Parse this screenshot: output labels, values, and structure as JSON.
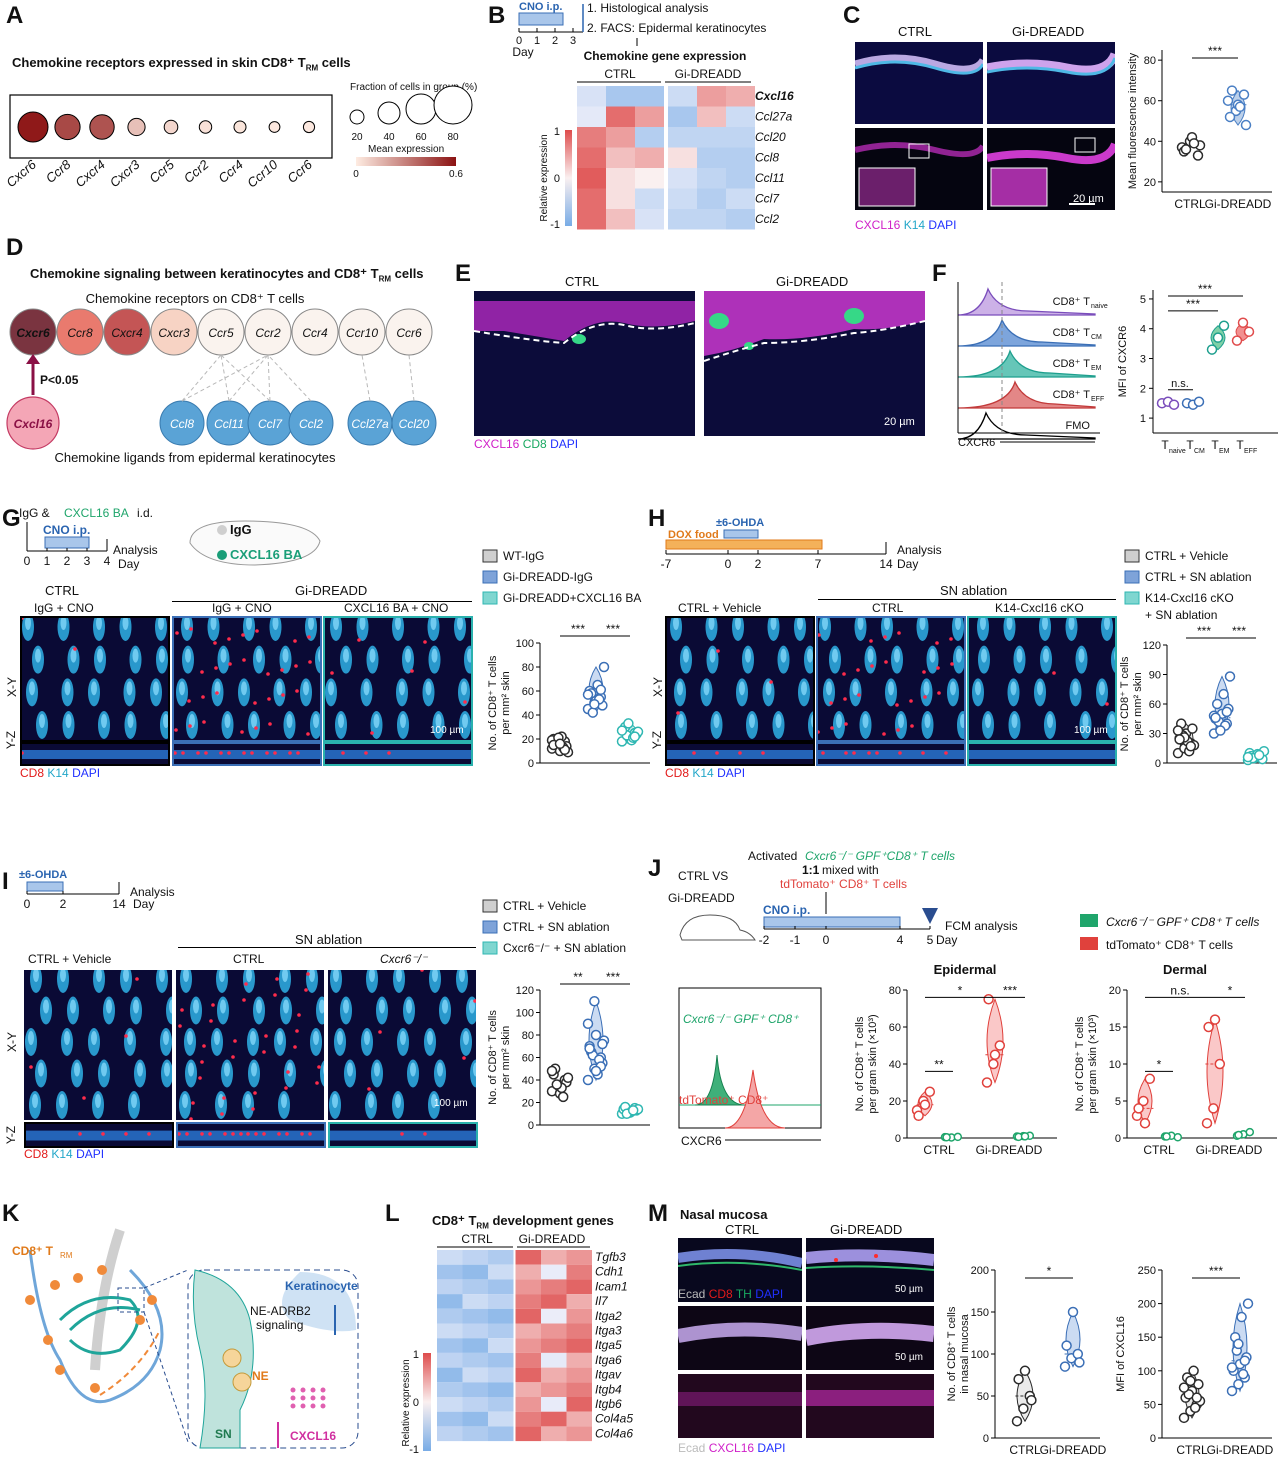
{
  "colors": {
    "ctrl": "#2b2b2b",
    "gi": "#4a7fc4",
    "ba": "#2fb7b2",
    "green": "#1fa56b",
    "red": "#e0413c",
    "magenta": "#e020c8",
    "k14": "#38b6d6",
    "dapi": "#2a3cff"
  },
  "panelA": {
    "label": "A",
    "title": "Chemokine receptors expressed in skin CD8⁺ T",
    "title_sub": "RM",
    "title_end": " cells",
    "genes": [
      "Cxcr6",
      "Ccr8",
      "Cxcr4",
      "Cxcr3",
      "Ccr5",
      "Ccr2",
      "Ccr4",
      "Ccr10",
      "Ccr6"
    ],
    "fraction": [
      60,
      48,
      46,
      28,
      19,
      16,
      15,
      12,
      13
    ],
    "expression": [
      0.58,
      0.45,
      0.42,
      0.12,
      0.06,
      0.03,
      0.02,
      0.01,
      0.01
    ],
    "size_title": "Fraction of cells in group (%)",
    "size_ticks": [
      "20",
      "40",
      "60",
      "80"
    ],
    "color_title": "Mean expression",
    "color_ticks": [
      "0",
      "0.6"
    ]
  },
  "panelB": {
    "label": "B",
    "cno": "CNO i.p.",
    "step1": "1. Histological analysis",
    "step2": "2. FACS: Epidermal keratinocytes",
    "days": [
      "0",
      "1",
      "2",
      "3"
    ],
    "day_label": "Day",
    "heat_title": "Chemokine gene expression",
    "groups": [
      "CTRL",
      "Gi-DREADD"
    ],
    "genes": [
      "Cxcl16",
      "Ccl27a",
      "Ccl20",
      "Ccl8",
      "Ccl11",
      "Ccl7",
      "Ccl2"
    ],
    "scale_label": "Relative expression",
    "scale_ticks": [
      "1",
      "0",
      "-1"
    ]
  },
  "panelC": {
    "label": "C",
    "groups": [
      "CTRL",
      "Gi-DREADD"
    ],
    "stain": [
      "CXCL16",
      "K14",
      "DAPI"
    ],
    "scale": "20 µm",
    "ylabel": "Mean fluorescence intensity",
    "yticks": [
      "20",
      "40",
      "60",
      "80"
    ],
    "sig": "***",
    "ctrl": [
      37,
      40,
      33,
      35,
      42,
      38,
      36,
      39
    ],
    "gi": [
      60,
      55,
      63,
      52,
      58,
      48,
      65,
      57
    ]
  },
  "panelD": {
    "label": "D",
    "title": "Chemokine signaling between keratinocytes and CD8⁺ T",
    "title_sub": "RM",
    "title_end": " cells",
    "receptor_caption": "Chemokine receptors on CD8⁺ T cells",
    "receptors": [
      "Cxcr6",
      "Ccr8",
      "Cxcr4",
      "Cxcr3",
      "Ccr5",
      "Ccr2",
      "Ccr4",
      "Ccr10",
      "Ccr6"
    ],
    "ligand": "Cxcl16",
    "pval": "P<0.05",
    "ligands": [
      "Ccl8",
      "Ccl11",
      "Ccl7",
      "Ccl2",
      "Ccl27a",
      "Ccl20"
    ],
    "ligand_caption": "Chemokine ligands from epidermal keratinocytes"
  },
  "panelE": {
    "label": "E",
    "groups": [
      "CTRL",
      "Gi-DREADD"
    ],
    "stain": [
      "CXCL16",
      "CD8",
      "DAPI"
    ],
    "scale": "20 µm"
  },
  "panelF": {
    "label": "F",
    "hist_labels": [
      "CD8⁺ T",
      "CD8⁺ T",
      "CD8⁺ T",
      "CD8⁺ T",
      "FMO"
    ],
    "hist_subs": [
      "naive",
      "CM",
      "EM",
      "EFF",
      ""
    ],
    "xlabel": "CXCR6",
    "ylabel": "MFI of CXCR6",
    "yticks": [
      "1",
      "2",
      "3",
      "4",
      "5"
    ],
    "cats": [
      "T",
      "T",
      "T",
      "T"
    ],
    "cat_subs": [
      "naive",
      "CM",
      "EM",
      "EFF"
    ],
    "values": [
      [
        1.5,
        1.55,
        1.45
      ],
      [
        1.5,
        1.45,
        1.55
      ],
      [
        3.3,
        3.7,
        4.1
      ],
      [
        3.6,
        4.2,
        3.9
      ]
    ],
    "sig": [
      "n.s.",
      "***",
      "***"
    ]
  },
  "panelG": {
    "label": "G",
    "inj": "IgG & ",
    "inj2": "CXCL16 BA",
    "inj3": " i.d.",
    "cno": "CNO i.p.",
    "analysis": "Analysis",
    "days": [
      "0",
      "1",
      "2",
      "3",
      "4"
    ],
    "day_label": "Day",
    "mouse_igg": "IgG",
    "mouse_ba": "CXCL16 BA",
    "group_header": "Gi-DREADD",
    "cols": [
      {
        "title": "CTRL",
        "sub": "IgG + CNO"
      },
      {
        "title": "",
        "sub": "IgG + CNO"
      },
      {
        "title": "",
        "sub": "CXCL16 BA + CNO"
      }
    ],
    "axis_xy": "X-Y",
    "axis_yz": "Y-Z",
    "scale": "100 µm",
    "stain": [
      "CD8",
      "K14",
      "DAPI"
    ],
    "legend": [
      "WT-IgG",
      "Gi-DREADD-IgG",
      "Gi-DREADD+CXCL16 BA"
    ],
    "ylabel": "No. of CD8⁺ T cells",
    "ylabel2": "per mm² skin",
    "yticks": [
      "0",
      "20",
      "40",
      "60",
      "80",
      "100"
    ],
    "sig": [
      "***",
      "***"
    ],
    "values": [
      [
        12,
        15,
        18,
        20,
        10,
        14,
        16,
        22,
        9,
        17,
        13,
        19,
        21,
        11,
        15,
        16
      ],
      [
        45,
        50,
        55,
        60,
        52,
        48,
        58,
        65,
        80,
        42,
        53,
        57,
        49,
        61
      ],
      [
        18,
        22,
        25,
        28,
        20,
        24,
        30,
        19,
        26,
        23,
        21,
        27,
        33,
        22
      ]
    ]
  },
  "panelH": {
    "label": "H",
    "dox": "DOX food",
    "ohda": "±6-OHDA",
    "analysis": "Analysis",
    "days": [
      "-7",
      "0",
      "2",
      "7",
      "14"
    ],
    "day_label": "Day",
    "group_header": "SN ablation",
    "cols": [
      {
        "sub": "CTRL + Vehicle"
      },
      {
        "sub": "CTRL"
      },
      {
        "sub": "K14-Cxcl16 cKO"
      }
    ],
    "axis_xy": "X-Y",
    "axis_yz": "Y-Z",
    "scale": "100 µm",
    "stain": [
      "CD8",
      "K14",
      "DAPI"
    ],
    "legend": [
      "CTRL + Vehicle",
      "CTRL + SN ablation",
      "K14-Cxcl16 cKO",
      "+ SN ablation"
    ],
    "ylabel": "No. of CD8⁺ T cells",
    "ylabel2": "per mm² skin",
    "yticks": [
      "0",
      "30",
      "60",
      "90",
      "120"
    ],
    "sig": [
      "***",
      "***"
    ],
    "values": [
      [
        10,
        15,
        20,
        25,
        30,
        35,
        40,
        22,
        18,
        28,
        12,
        33,
        26,
        17,
        24
      ],
      [
        30,
        35,
        40,
        45,
        50,
        55,
        60,
        70,
        88,
        42,
        38,
        48,
        33,
        52,
        46
      ],
      [
        3,
        5,
        8,
        10,
        6,
        4,
        7,
        9,
        12,
        5,
        8,
        6
      ]
    ]
  },
  "panelI": {
    "label": "I",
    "ohda": "±6-OHDA",
    "analysis": "Analysis",
    "days": [
      "0",
      "2",
      "14"
    ],
    "day_label": "Day",
    "group_header": "SN ablation",
    "cols": [
      {
        "sub": "CTRL + Vehicle"
      },
      {
        "sub": "CTRL"
      },
      {
        "sub": "Cxcr6⁻/⁻"
      }
    ],
    "axis_xy": "X-Y",
    "axis_yz": "Y-Z",
    "scale": "100 µm",
    "stain": [
      "CD8",
      "K14",
      "DAPI"
    ],
    "legend": [
      "CTRL + Vehicle",
      "CTRL + SN ablation",
      "Cxcr6⁻/⁻ + SN ablation"
    ],
    "ylabel": "No. of CD8⁺ T cells",
    "ylabel2": "per mm² skin",
    "yticks": [
      "0",
      "20",
      "40",
      "60",
      "80",
      "100",
      "120"
    ],
    "sig": [
      "**",
      "***"
    ],
    "values": [
      [
        30,
        35,
        40,
        45,
        28,
        38,
        50,
        33,
        42,
        36,
        25,
        48
      ],
      [
        40,
        50,
        60,
        70,
        80,
        55,
        65,
        45,
        75,
        62,
        58,
        90,
        110,
        52,
        68,
        48,
        72
      ],
      [
        10,
        12,
        15,
        14,
        11,
        13,
        16,
        12,
        14,
        10,
        13
      ]
    ]
  },
  "panelJ": {
    "label": "J",
    "cond": "CTRL VS",
    "cond2": "Gi-DREADD",
    "act1": "Activated ",
    "act2": "Cxcr6⁻/⁻ GPF⁺CD8⁺ T cells",
    "mix1": "1:1",
    "mix2": " mixed with",
    "mix3": "tdTomato⁺ CD8⁺ T cells",
    "cno": "CNO i.p.",
    "fcm": "FCM analysis",
    "days": [
      "-2",
      "-1",
      "0",
      "4",
      "5"
    ],
    "day_label": "Day",
    "hist_g": "Cxcr6⁻/⁻ GPF⁺ CD8⁺",
    "hist_r": "tdTomato⁺ CD8⁺",
    "hist_x": "CXCR6",
    "legend": [
      "Cxcr6⁻/⁻ GPF⁺ CD8⁺ T cells",
      "tdTomato⁺ CD8⁺ T cells"
    ],
    "ep_title": "Epidermal",
    "de_title": "Dermal",
    "ylabel": "No. of CD8⁺ T cells",
    "ylabel2": "per gram skin (×10³)",
    "ep_yticks": [
      "0",
      "20",
      "40",
      "60",
      "80"
    ],
    "de_yticks": [
      "0",
      "5",
      "10",
      "15",
      "20"
    ],
    "xcats": [
      "CTRL",
      "Gi-DREADD"
    ],
    "ep_sig": [
      "**",
      "*",
      "***"
    ],
    "de_sig": [
      "*",
      "n.s.",
      "*"
    ],
    "ep": {
      "ctrl_td": [
        15,
        20,
        25,
        12,
        18
      ],
      "ctrl_g": [
        0.5,
        0.3,
        0.6,
        0.4
      ],
      "gi_td": [
        30,
        40,
        50,
        75,
        45
      ],
      "gi_g": [
        0.8,
        1,
        1.2,
        0.6,
        0.9
      ]
    },
    "de": {
      "ctrl_td": [
        3,
        5,
        8,
        4,
        2
      ],
      "ctrl_g": [
        0.2,
        0.3,
        0.1,
        0.2
      ],
      "gi_td": [
        2,
        4,
        10,
        15,
        16
      ],
      "gi_g": [
        0.3,
        0.5,
        0.8,
        0.4
      ]
    }
  },
  "panelK": {
    "label": "K",
    "trm": "CD8⁺ T",
    "trm_sub": "RM",
    "kc": "Keratinocyte",
    "ne_sig": "NE-ADRB2",
    "ne_sig2": "signaling",
    "ne": "NE",
    "sn": "SN",
    "cxcl16": "CXCL16"
  },
  "panelL": {
    "label": "L",
    "title": "CD8⁺ T",
    "title_sub": "RM",
    "title_end": " development genes",
    "groups": [
      "CTRL",
      "Gi-DREADD"
    ],
    "genes": [
      "Tgfb3",
      "Cdh1",
      "Icam1",
      "Il7",
      "Itga2",
      "Itga3",
      "Itga5",
      "Itga6",
      "Itgav",
      "Itgb4",
      "Itgb6",
      "Col4a5",
      "Col4a6"
    ],
    "scale_label": "Relative expression",
    "scale_ticks": [
      "1",
      "0",
      "-1"
    ]
  },
  "panelM": {
    "label": "M",
    "title": "Nasal mucosa",
    "groups": [
      "CTRL",
      "Gi-DREADD"
    ],
    "stain1": [
      "Ecad",
      "CD8",
      "TH",
      "DAPI"
    ],
    "stain2": [
      "Ecad",
      "CXCL16",
      "DAPI"
    ],
    "scale": "50 µm",
    "y1": "No. of CD8⁺ T cells",
    "y1b": "in nasal mucosa",
    "y1ticks": [
      "0",
      "50",
      "100",
      "150",
      "200"
    ],
    "sig1": "*",
    "y2": "MFI of CXCL16",
    "y2ticks": [
      "0",
      "50",
      "100",
      "150",
      "200",
      "250"
    ],
    "sig2": "***",
    "xcats": [
      "CTRL",
      "Gi-DREADD"
    ],
    "v1_ctrl": [
      20,
      35,
      50,
      70,
      80,
      45
    ],
    "v1_gi": [
      85,
      95,
      100,
      110,
      150,
      90
    ],
    "v2_ctrl": [
      30,
      40,
      50,
      60,
      70,
      80,
      90,
      100,
      55,
      65,
      45,
      75,
      85,
      60
    ],
    "v2_gi": [
      70,
      80,
      90,
      100,
      110,
      120,
      150,
      180,
      200,
      130,
      95,
      105,
      140,
      115
    ]
  }
}
